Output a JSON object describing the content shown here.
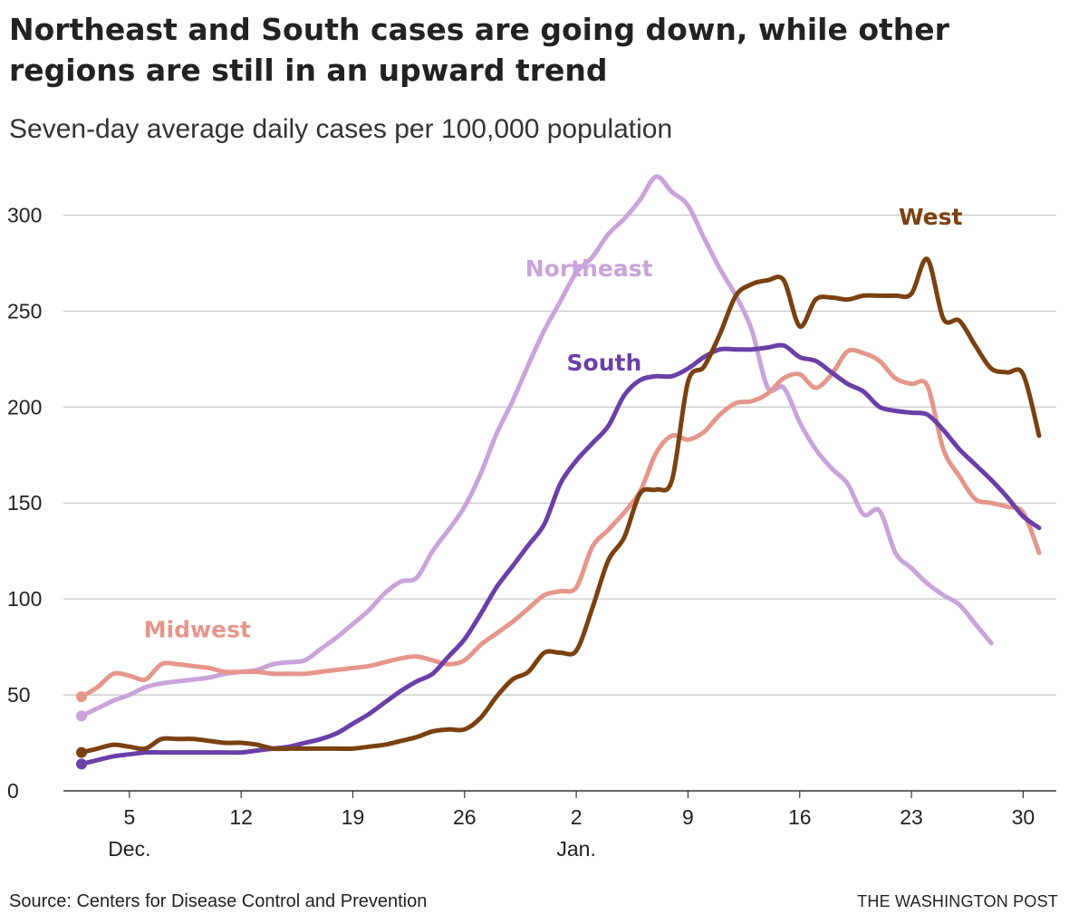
{
  "title": "Northeast and South cases are going down, while other regions are still in an upward trend",
  "subtitle": "Seven-day average daily cases per 100,000 population",
  "source": "Source: Centers for Disease Control and Prevention",
  "credit": "THE WASHINGTON POST",
  "chart_data": {
    "type": "line",
    "title": "Northeast and South cases are going down, while other regions are still in an upward trend",
    "subtitle": "Seven-day average daily cases per 100,000 population",
    "xlabel": "",
    "ylabel": "",
    "ylim": [
      0,
      320
    ],
    "yticks": [
      0,
      50,
      100,
      150,
      200,
      250,
      300
    ],
    "xlim": [
      0,
      60
    ],
    "grid": true,
    "legend": "direct labels",
    "x_ticks": [
      {
        "x": 3,
        "label": "5",
        "sublabel": "Dec."
      },
      {
        "x": 10,
        "label": "12",
        "sublabel": ""
      },
      {
        "x": 17,
        "label": "19",
        "sublabel": ""
      },
      {
        "x": 24,
        "label": "26",
        "sublabel": ""
      },
      {
        "x": 31,
        "label": "2",
        "sublabel": "Jan."
      },
      {
        "x": 38,
        "label": "9",
        "sublabel": ""
      },
      {
        "x": 45,
        "label": "16",
        "sublabel": ""
      },
      {
        "x": 52,
        "label": "23",
        "sublabel": ""
      },
      {
        "x": 59,
        "label": "30",
        "sublabel": ""
      }
    ],
    "series": [
      {
        "name": "Northeast",
        "color": "#c9a3d9",
        "label_at": {
          "x": 27.8,
          "y": 268
        },
        "points": [
          [
            0,
            39
          ],
          [
            1,
            43
          ],
          [
            2,
            47
          ],
          [
            3,
            50
          ],
          [
            4,
            54
          ],
          [
            5,
            56
          ],
          [
            6,
            57
          ],
          [
            7,
            58
          ],
          [
            8,
            59
          ],
          [
            9,
            61
          ],
          [
            10,
            62
          ],
          [
            11,
            63
          ],
          [
            12,
            66
          ],
          [
            13,
            67
          ],
          [
            14,
            68
          ],
          [
            15,
            74
          ],
          [
            16,
            80
          ],
          [
            17,
            87
          ],
          [
            18,
            94
          ],
          [
            19,
            103
          ],
          [
            20,
            109
          ],
          [
            21,
            111
          ],
          [
            22,
            125
          ],
          [
            23,
            136
          ],
          [
            24,
            148
          ],
          [
            25,
            165
          ],
          [
            26,
            186
          ],
          [
            27,
            203
          ],
          [
            28,
            222
          ],
          [
            29,
            240
          ],
          [
            30,
            255
          ],
          [
            31,
            270
          ],
          [
            32,
            278
          ],
          [
            33,
            290
          ],
          [
            34,
            298
          ],
          [
            35,
            308
          ],
          [
            36,
            320
          ],
          [
            37,
            312
          ],
          [
            38,
            305
          ],
          [
            39,
            288
          ],
          [
            40,
            272
          ],
          [
            41,
            258
          ],
          [
            42,
            240
          ],
          [
            43,
            210
          ],
          [
            44,
            210
          ],
          [
            45,
            192
          ],
          [
            46,
            178
          ],
          [
            47,
            168
          ],
          [
            48,
            160
          ],
          [
            49,
            144
          ],
          [
            50,
            146
          ],
          [
            51,
            124
          ],
          [
            52,
            116
          ],
          [
            53,
            108
          ],
          [
            54,
            102
          ],
          [
            55,
            97
          ],
          [
            56,
            87
          ],
          [
            57,
            77
          ]
        ]
      },
      {
        "name": "Midwest",
        "color": "#e5968a",
        "label_at": {
          "x": 3.9,
          "y": 80
        },
        "points": [
          [
            0,
            49
          ],
          [
            1,
            54
          ],
          [
            2,
            61
          ],
          [
            3,
            60
          ],
          [
            4,
            58
          ],
          [
            5,
            66
          ],
          [
            6,
            66
          ],
          [
            7,
            65
          ],
          [
            8,
            64
          ],
          [
            9,
            62
          ],
          [
            10,
            62
          ],
          [
            11,
            62
          ],
          [
            12,
            61
          ],
          [
            13,
            61
          ],
          [
            14,
            61
          ],
          [
            15,
            62
          ],
          [
            16,
            63
          ],
          [
            17,
            64
          ],
          [
            18,
            65
          ],
          [
            19,
            67
          ],
          [
            20,
            69
          ],
          [
            21,
            70
          ],
          [
            22,
            68
          ],
          [
            23,
            66
          ],
          [
            24,
            68
          ],
          [
            25,
            76
          ],
          [
            26,
            82
          ],
          [
            27,
            88
          ],
          [
            28,
            95
          ],
          [
            29,
            102
          ],
          [
            30,
            104
          ],
          [
            31,
            106
          ],
          [
            32,
            127
          ],
          [
            33,
            136
          ],
          [
            34,
            145
          ],
          [
            35,
            156
          ],
          [
            36,
            176
          ],
          [
            37,
            185
          ],
          [
            38,
            183
          ],
          [
            39,
            187
          ],
          [
            40,
            196
          ],
          [
            41,
            202
          ],
          [
            42,
            203
          ],
          [
            43,
            207
          ],
          [
            44,
            215
          ],
          [
            45,
            217
          ],
          [
            46,
            210
          ],
          [
            47,
            217
          ],
          [
            48,
            229
          ],
          [
            49,
            228
          ],
          [
            50,
            224
          ],
          [
            51,
            215
          ],
          [
            52,
            212
          ],
          [
            53,
            211
          ],
          [
            54,
            178
          ],
          [
            55,
            164
          ],
          [
            56,
            152
          ],
          [
            57,
            150
          ],
          [
            58,
            148
          ],
          [
            59,
            145
          ],
          [
            60,
            124
          ]
        ]
      },
      {
        "name": "South",
        "color": "#6b3fa8",
        "label_at": {
          "x": 30.4,
          "y": 219
        },
        "points": [
          [
            0,
            14
          ],
          [
            1,
            16
          ],
          [
            2,
            18
          ],
          [
            3,
            19
          ],
          [
            4,
            20
          ],
          [
            5,
            20
          ],
          [
            6,
            20
          ],
          [
            7,
            20
          ],
          [
            8,
            20
          ],
          [
            9,
            20
          ],
          [
            10,
            20
          ],
          [
            11,
            21
          ],
          [
            12,
            22
          ],
          [
            13,
            23
          ],
          [
            14,
            25
          ],
          [
            15,
            27
          ],
          [
            16,
            30
          ],
          [
            17,
            35
          ],
          [
            18,
            40
          ],
          [
            19,
            46
          ],
          [
            20,
            52
          ],
          [
            21,
            57
          ],
          [
            22,
            61
          ],
          [
            23,
            70
          ],
          [
            24,
            79
          ],
          [
            25,
            92
          ],
          [
            26,
            106
          ],
          [
            27,
            117
          ],
          [
            28,
            128
          ],
          [
            29,
            139
          ],
          [
            30,
            160
          ],
          [
            31,
            172
          ],
          [
            32,
            181
          ],
          [
            33,
            190
          ],
          [
            34,
            206
          ],
          [
            35,
            214
          ],
          [
            36,
            216
          ],
          [
            37,
            216
          ],
          [
            38,
            220
          ],
          [
            39,
            226
          ],
          [
            40,
            230
          ],
          [
            41,
            230
          ],
          [
            42,
            230
          ],
          [
            43,
            231
          ],
          [
            44,
            232
          ],
          [
            45,
            226
          ],
          [
            46,
            224
          ],
          [
            47,
            218
          ],
          [
            48,
            212
          ],
          [
            49,
            208
          ],
          [
            50,
            200
          ],
          [
            51,
            198
          ],
          [
            52,
            197
          ],
          [
            53,
            196
          ],
          [
            54,
            188
          ],
          [
            55,
            178
          ],
          [
            56,
            170
          ],
          [
            57,
            162
          ],
          [
            58,
            153
          ],
          [
            59,
            143
          ],
          [
            60,
            137
          ]
        ]
      },
      {
        "name": "West",
        "color": "#7a4110",
        "label_at": {
          "x": 51.2,
          "y": 295
        },
        "points": [
          [
            0,
            20
          ],
          [
            1,
            22
          ],
          [
            2,
            24
          ],
          [
            3,
            23
          ],
          [
            4,
            22
          ],
          [
            5,
            27
          ],
          [
            6,
            27
          ],
          [
            7,
            27
          ],
          [
            8,
            26
          ],
          [
            9,
            25
          ],
          [
            10,
            25
          ],
          [
            11,
            24
          ],
          [
            12,
            22
          ],
          [
            13,
            22
          ],
          [
            14,
            22
          ],
          [
            15,
            22
          ],
          [
            16,
            22
          ],
          [
            17,
            22
          ],
          [
            18,
            23
          ],
          [
            19,
            24
          ],
          [
            20,
            26
          ],
          [
            21,
            28
          ],
          [
            22,
            31
          ],
          [
            23,
            32
          ],
          [
            24,
            32
          ],
          [
            25,
            38
          ],
          [
            26,
            49
          ],
          [
            27,
            58
          ],
          [
            28,
            62
          ],
          [
            29,
            72
          ],
          [
            30,
            72
          ],
          [
            31,
            73
          ],
          [
            32,
            95
          ],
          [
            33,
            120
          ],
          [
            34,
            132
          ],
          [
            35,
            155
          ],
          [
            36,
            157
          ],
          [
            37,
            162
          ],
          [
            38,
            213
          ],
          [
            39,
            221
          ],
          [
            40,
            238
          ],
          [
            41,
            258
          ],
          [
            42,
            264
          ],
          [
            43,
            266
          ],
          [
            44,
            266
          ],
          [
            45,
            242
          ],
          [
            46,
            256
          ],
          [
            47,
            257
          ],
          [
            48,
            256
          ],
          [
            49,
            258
          ],
          [
            50,
            258
          ],
          [
            51,
            258
          ],
          [
            52,
            259
          ],
          [
            53,
            277
          ],
          [
            54,
            246
          ],
          [
            55,
            245
          ],
          [
            56,
            232
          ],
          [
            57,
            220
          ],
          [
            58,
            218
          ],
          [
            59,
            217
          ],
          [
            60,
            185
          ]
        ]
      }
    ]
  }
}
